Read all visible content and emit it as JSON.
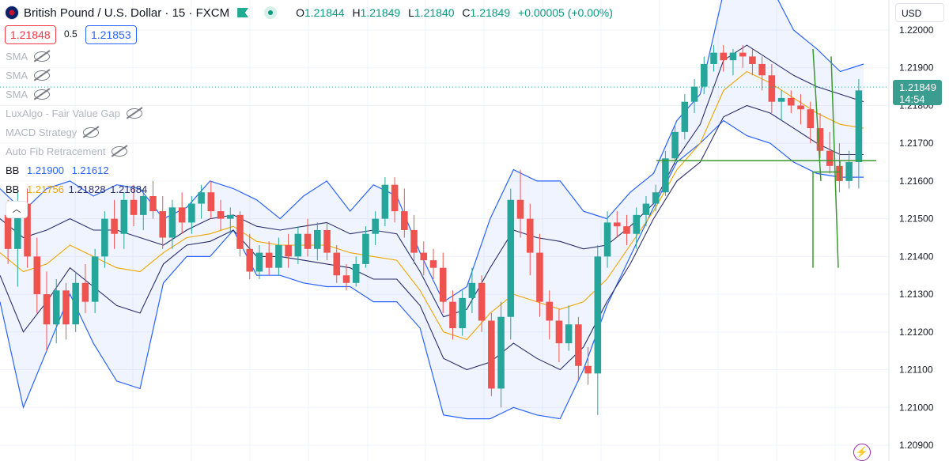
{
  "header": {
    "symbol": "British Pound / U.S. Dollar · 15 · FXCM",
    "ohlc": {
      "o_label": "O",
      "o": "1.21844",
      "h_label": "H",
      "h": "1.21849",
      "l_label": "L",
      "l": "1.21840",
      "c_label": "C",
      "c": "1.21849",
      "change": "+0.00005 (+0.00%)"
    }
  },
  "trade": {
    "sell_price": "1.21848",
    "spread": "0.5",
    "buy_price": "1.21853"
  },
  "indicators": [
    {
      "label": "SMA"
    },
    {
      "label": "SMA"
    },
    {
      "label": "SMA"
    },
    {
      "label": "LuxAlgo - Fair Value Gap"
    },
    {
      "label": "MACD Strategy"
    },
    {
      "label": "Auto Fib Retracement"
    }
  ],
  "bb_rows": [
    {
      "label": "BB",
      "v1": "1.21900",
      "v2": "1.21612",
      "v3": ""
    },
    {
      "label": "BB",
      "v1": "1.21756",
      "v2": "1.21828",
      "v3": "1.21684"
    }
  ],
  "collapse_icon": "chevron-up-icon",
  "currency": "USD",
  "current_price": {
    "price": "1.21849",
    "countdown": "14:54"
  },
  "colors": {
    "up": "#26a69a",
    "down": "#ef5350",
    "outer_band": "#2962ff",
    "inner_band": "#2a2e6b",
    "basis": "#f0a500",
    "fill": "#2962ff",
    "lines": "#3a9a2e",
    "accent": "#089981"
  },
  "chart_data": {
    "type": "candlestick",
    "title": "British Pound / U.S. Dollar · 15 · FXCM",
    "ylim": [
      1.2088,
      1.2225
    ],
    "yticks": [
      "1.22000",
      "1.21900",
      "1.21800",
      "1.21700",
      "1.21600",
      "1.21500",
      "1.21400",
      "1.21300",
      "1.21200",
      "1.21100",
      "1.21000",
      "1.20900"
    ],
    "grid": true,
    "candles": [
      {
        "o": 1.2151,
        "h": 1.2155,
        "l": 1.2138,
        "c": 1.2142
      },
      {
        "o": 1.2142,
        "h": 1.2157,
        "l": 1.2132,
        "c": 1.2154
      },
      {
        "o": 1.2154,
        "h": 1.2158,
        "l": 1.2137,
        "c": 1.214
      },
      {
        "o": 1.214,
        "h": 1.2145,
        "l": 1.2125,
        "c": 1.213
      },
      {
        "o": 1.213,
        "h": 1.2136,
        "l": 1.2115,
        "c": 1.2122
      },
      {
        "o": 1.2122,
        "h": 1.2134,
        "l": 1.2117,
        "c": 1.2131
      },
      {
        "o": 1.2131,
        "h": 1.2133,
        "l": 1.2118,
        "c": 1.2122
      },
      {
        "o": 1.2122,
        "h": 1.2136,
        "l": 1.212,
        "c": 1.2133
      },
      {
        "o": 1.2133,
        "h": 1.2138,
        "l": 1.2125,
        "c": 1.2128
      },
      {
        "o": 1.2128,
        "h": 1.2142,
        "l": 1.2125,
        "c": 1.214
      },
      {
        "o": 1.214,
        "h": 1.2152,
        "l": 1.2137,
        "c": 1.215
      },
      {
        "o": 1.215,
        "h": 1.2155,
        "l": 1.2142,
        "c": 1.2146
      },
      {
        "o": 1.2146,
        "h": 1.2157,
        "l": 1.2142,
        "c": 1.2155
      },
      {
        "o": 1.2155,
        "h": 1.2159,
        "l": 1.2148,
        "c": 1.2151
      },
      {
        "o": 1.2151,
        "h": 1.2158,
        "l": 1.2147,
        "c": 1.2156
      },
      {
        "o": 1.2156,
        "h": 1.216,
        "l": 1.215,
        "c": 1.2152
      },
      {
        "o": 1.2152,
        "h": 1.2156,
        "l": 1.2142,
        "c": 1.2145
      },
      {
        "o": 1.2145,
        "h": 1.2155,
        "l": 1.2142,
        "c": 1.2153
      },
      {
        "o": 1.2153,
        "h": 1.2157,
        "l": 1.2146,
        "c": 1.2149
      },
      {
        "o": 1.2149,
        "h": 1.2156,
        "l": 1.2146,
        "c": 1.2154
      },
      {
        "o": 1.2154,
        "h": 1.2159,
        "l": 1.215,
        "c": 1.2157
      },
      {
        "o": 1.2157,
        "h": 1.216,
        "l": 1.215,
        "c": 1.2152
      },
      {
        "o": 1.2152,
        "h": 1.2155,
        "l": 1.2147,
        "c": 1.215
      },
      {
        "o": 1.215,
        "h": 1.2153,
        "l": 1.2146,
        "c": 1.2151
      },
      {
        "o": 1.2151,
        "h": 1.2152,
        "l": 1.214,
        "c": 1.2142
      },
      {
        "o": 1.2142,
        "h": 1.2146,
        "l": 1.2134,
        "c": 1.2136
      },
      {
        "o": 1.2136,
        "h": 1.2143,
        "l": 1.2134,
        "c": 1.2141
      },
      {
        "o": 1.2141,
        "h": 1.2144,
        "l": 1.2135,
        "c": 1.2137
      },
      {
        "o": 1.2137,
        "h": 1.2145,
        "l": 1.2135,
        "c": 1.2143
      },
      {
        "o": 1.2143,
        "h": 1.2146,
        "l": 1.2137,
        "c": 1.214
      },
      {
        "o": 1.214,
        "h": 1.2148,
        "l": 1.2138,
        "c": 1.2146
      },
      {
        "o": 1.2146,
        "h": 1.215,
        "l": 1.214,
        "c": 1.2142
      },
      {
        "o": 1.2142,
        "h": 1.2149,
        "l": 1.2139,
        "c": 1.2147
      },
      {
        "o": 1.2147,
        "h": 1.2149,
        "l": 1.2139,
        "c": 1.2141
      },
      {
        "o": 1.2141,
        "h": 1.2143,
        "l": 1.2133,
        "c": 1.2135
      },
      {
        "o": 1.2135,
        "h": 1.2138,
        "l": 1.2131,
        "c": 1.2133
      },
      {
        "o": 1.2133,
        "h": 1.214,
        "l": 1.2132,
        "c": 1.2138
      },
      {
        "o": 1.2138,
        "h": 1.2148,
        "l": 1.2137,
        "c": 1.2146
      },
      {
        "o": 1.2146,
        "h": 1.2152,
        "l": 1.2143,
        "c": 1.215
      },
      {
        "o": 1.215,
        "h": 1.2161,
        "l": 1.2148,
        "c": 1.2159
      },
      {
        "o": 1.2159,
        "h": 1.2161,
        "l": 1.2149,
        "c": 1.2152
      },
      {
        "o": 1.2152,
        "h": 1.2158,
        "l": 1.2145,
        "c": 1.2147
      },
      {
        "o": 1.2147,
        "h": 1.2151,
        "l": 1.2138,
        "c": 1.2141
      },
      {
        "o": 1.2141,
        "h": 1.2144,
        "l": 1.2135,
        "c": 1.2139
      },
      {
        "o": 1.2139,
        "h": 1.2142,
        "l": 1.2134,
        "c": 1.2137
      },
      {
        "o": 1.2137,
        "h": 1.2141,
        "l": 1.2125,
        "c": 1.2128
      },
      {
        "o": 1.2128,
        "h": 1.2131,
        "l": 1.2118,
        "c": 1.2121
      },
      {
        "o": 1.2121,
        "h": 1.2131,
        "l": 1.2119,
        "c": 1.2129
      },
      {
        "o": 1.2129,
        "h": 1.2137,
        "l": 1.2125,
        "c": 1.2133
      },
      {
        "o": 1.2133,
        "h": 1.2135,
        "l": 1.212,
        "c": 1.2123
      },
      {
        "o": 1.2123,
        "h": 1.2125,
        "l": 1.2103,
        "c": 1.2105
      },
      {
        "o": 1.2105,
        "h": 1.2128,
        "l": 1.21,
        "c": 1.2124
      },
      {
        "o": 1.2124,
        "h": 1.2158,
        "l": 1.2118,
        "c": 1.2155
      },
      {
        "o": 1.2155,
        "h": 1.2163,
        "l": 1.2145,
        "c": 1.215
      },
      {
        "o": 1.215,
        "h": 1.2154,
        "l": 1.2135,
        "c": 1.2141
      },
      {
        "o": 1.2141,
        "h": 1.2146,
        "l": 1.2124,
        "c": 1.2128
      },
      {
        "o": 1.2128,
        "h": 1.2131,
        "l": 1.2118,
        "c": 1.2123
      },
      {
        "o": 1.2123,
        "h": 1.2126,
        "l": 1.2112,
        "c": 1.2117
      },
      {
        "o": 1.2117,
        "h": 1.2127,
        "l": 1.2115,
        "c": 1.2122
      },
      {
        "o": 1.2122,
        "h": 1.2124,
        "l": 1.2107,
        "c": 1.2111
      },
      {
        "o": 1.2111,
        "h": 1.2116,
        "l": 1.2106,
        "c": 1.2109
      },
      {
        "o": 1.2109,
        "h": 1.2143,
        "l": 1.2098,
        "c": 1.214
      },
      {
        "o": 1.214,
        "h": 1.2152,
        "l": 1.2137,
        "c": 1.2149
      },
      {
        "o": 1.2149,
        "h": 1.2152,
        "l": 1.2145,
        "c": 1.2148
      },
      {
        "o": 1.2148,
        "h": 1.2151,
        "l": 1.2143,
        "c": 1.2146
      },
      {
        "o": 1.2146,
        "h": 1.2153,
        "l": 1.2142,
        "c": 1.2151
      },
      {
        "o": 1.2151,
        "h": 1.2156,
        "l": 1.2148,
        "c": 1.2154
      },
      {
        "o": 1.2154,
        "h": 1.2159,
        "l": 1.2152,
        "c": 1.2157
      },
      {
        "o": 1.2157,
        "h": 1.2168,
        "l": 1.2156,
        "c": 1.2166
      },
      {
        "o": 1.2166,
        "h": 1.2175,
        "l": 1.2164,
        "c": 1.2173
      },
      {
        "o": 1.2173,
        "h": 1.2183,
        "l": 1.2171,
        "c": 1.2181
      },
      {
        "o": 1.2181,
        "h": 1.2187,
        "l": 1.2178,
        "c": 1.2185
      },
      {
        "o": 1.2185,
        "h": 1.2193,
        "l": 1.2183,
        "c": 1.2191
      },
      {
        "o": 1.2191,
        "h": 1.2196,
        "l": 1.2189,
        "c": 1.2194
      },
      {
        "o": 1.2194,
        "h": 1.2196,
        "l": 1.2189,
        "c": 1.2192
      },
      {
        "o": 1.2192,
        "h": 1.2195,
        "l": 1.2188,
        "c": 1.2194
      },
      {
        "o": 1.2194,
        "h": 1.2196,
        "l": 1.219,
        "c": 1.2193
      },
      {
        "o": 1.2193,
        "h": 1.2195,
        "l": 1.2188,
        "c": 1.2191
      },
      {
        "o": 1.2191,
        "h": 1.2193,
        "l": 1.2184,
        "c": 1.2188
      },
      {
        "o": 1.2188,
        "h": 1.2191,
        "l": 1.2178,
        "c": 1.2181
      },
      {
        "o": 1.2181,
        "h": 1.2184,
        "l": 1.2176,
        "c": 1.2182
      },
      {
        "o": 1.2182,
        "h": 1.2184,
        "l": 1.2178,
        "c": 1.218
      },
      {
        "o": 1.218,
        "h": 1.2183,
        "l": 1.2175,
        "c": 1.2179
      },
      {
        "o": 1.2179,
        "h": 1.2181,
        "l": 1.217,
        "c": 1.2174
      },
      {
        "o": 1.2174,
        "h": 1.2178,
        "l": 1.2166,
        "c": 1.2168
      },
      {
        "o": 1.2168,
        "h": 1.2173,
        "l": 1.2162,
        "c": 1.2164
      },
      {
        "o": 1.2164,
        "h": 1.217,
        "l": 1.2157,
        "c": 1.216
      },
      {
        "o": 1.216,
        "h": 1.2168,
        "l": 1.2158,
        "c": 1.2165
      },
      {
        "o": 1.2165,
        "h": 1.2187,
        "l": 1.2158,
        "c": 1.2184
      }
    ],
    "bollinger": {
      "outer_upper": [
        1.2158,
        1.2152,
        1.2158,
        1.216,
        1.2156,
        1.2159,
        1.2158,
        1.215,
        1.2153,
        1.216,
        1.2158,
        1.2155,
        1.215,
        1.2156,
        1.216,
        1.2152,
        1.2159,
        1.2156,
        1.2141,
        1.2128,
        1.2132,
        1.215,
        1.2163,
        1.216,
        1.216,
        1.2152,
        1.215,
        1.2157,
        1.2162,
        1.2176,
        1.2183,
        1.221,
        1.2219,
        1.2212,
        1.22,
        1.2195,
        1.2189,
        1.2191
      ],
      "outer_lower": [
        1.2128,
        1.21,
        1.2115,
        1.213,
        1.2117,
        1.2107,
        1.2105,
        1.2133,
        1.214,
        1.214,
        1.2147,
        1.2135,
        1.2135,
        1.2133,
        1.2132,
        1.2132,
        1.2128,
        1.2128,
        1.2121,
        1.2098,
        1.2097,
        1.2097,
        1.21,
        1.2098,
        1.2097,
        1.211,
        1.2127,
        1.214,
        1.2153,
        1.2165,
        1.217,
        1.2176,
        1.2172,
        1.217,
        1.2165,
        1.2162,
        1.2161,
        1.2161
      ],
      "inner_upper": [
        1.215,
        1.2145,
        1.2147,
        1.215,
        1.2147,
        1.2147,
        1.2145,
        1.2143,
        1.2147,
        1.215,
        1.2151,
        1.2148,
        1.2147,
        1.2148,
        1.2149,
        1.2146,
        1.2147,
        1.2146,
        1.2136,
        1.2124,
        1.2126,
        1.2137,
        1.2147,
        1.2145,
        1.2144,
        1.2142,
        1.2143,
        1.2148,
        1.2154,
        1.2166,
        1.2175,
        1.2192,
        1.2196,
        1.2192,
        1.2188,
        1.2185,
        1.2183,
        1.2181
      ],
      "inner_lower": [
        1.2135,
        1.212,
        1.2128,
        1.2137,
        1.2132,
        1.2127,
        1.2125,
        1.2138,
        1.2143,
        1.2144,
        1.2147,
        1.214,
        1.214,
        1.2139,
        1.2138,
        1.2137,
        1.2134,
        1.2134,
        1.2127,
        1.2113,
        1.211,
        1.2112,
        1.2117,
        1.2113,
        1.211,
        1.2116,
        1.2128,
        1.2138,
        1.215,
        1.216,
        1.2165,
        1.2177,
        1.218,
        1.2178,
        1.2174,
        1.217,
        1.2167,
        1.2167
      ],
      "basis": [
        1.2141,
        1.2136,
        1.2138,
        1.2143,
        1.214,
        1.2137,
        1.2136,
        1.2141,
        1.2145,
        1.2146,
        1.2148,
        1.2144,
        1.2143,
        1.2143,
        1.2143,
        1.2141,
        1.214,
        1.2139,
        1.2131,
        1.212,
        1.2118,
        1.2125,
        1.213,
        1.2128,
        1.2126,
        1.2128,
        1.2134,
        1.2143,
        1.2152,
        1.2163,
        1.217,
        1.2184,
        1.2189,
        1.2186,
        1.2182,
        1.2178,
        1.2175,
        1.2174
      ]
    }
  }
}
